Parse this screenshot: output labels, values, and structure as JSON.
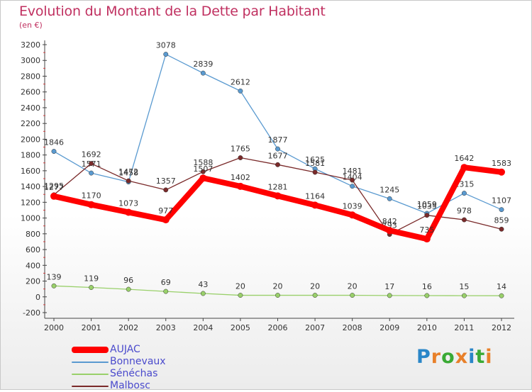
{
  "title": "Evolution du Montant de la Dette par Habitant",
  "subtitle": "(en €)",
  "logo": {
    "text": "Proxiti",
    "colors": [
      "#2a86c8",
      "#e8802a",
      "#3aaa35",
      "#e8802a",
      "#2a86c8",
      "#3aaa35",
      "#e8802a"
    ]
  },
  "chart_data": {
    "type": "line",
    "x": [
      "2000",
      "2001",
      "2002",
      "2003",
      "2004",
      "2005",
      "2006",
      "2007",
      "2008",
      "2009",
      "2010",
      "2011",
      "2012"
    ],
    "ylim": [
      -200,
      3200
    ],
    "yticks": [
      -200,
      0,
      200,
      400,
      600,
      800,
      1000,
      1200,
      1400,
      1600,
      1800,
      2000,
      2200,
      2400,
      2600,
      2800,
      3000,
      3200
    ],
    "grid": false,
    "legend": "bottom-left",
    "series": [
      {
        "name": "Bonnevaux",
        "color": "#5a9ad0",
        "values": [
          1846,
          1571,
          1458,
          3078,
          2839,
          2612,
          1877,
          1625,
          1404,
          1245,
          1059,
          1315,
          1107
        ]
      },
      {
        "name": "Sénéchas",
        "color": "#99d06a",
        "values": [
          139,
          119,
          96,
          69,
          43,
          20,
          20,
          20,
          20,
          17,
          16,
          15,
          14
        ]
      },
      {
        "name": "Malbosc",
        "color": "#7a2a2a",
        "values": [
          1295,
          1692,
          1472,
          1357,
          1588,
          1765,
          1677,
          1581,
          1481,
          793,
          1035,
          978,
          859
        ]
      },
      {
        "name": "AUJAC",
        "color": "#ff0000",
        "values": [
          1277,
          1170,
          1073,
          977,
          1507,
          1402,
          1281,
          1164,
          1039,
          842,
          735,
          1642,
          1583
        ]
      }
    ],
    "legend_order": [
      "AUJAC",
      "Bonnevaux",
      "Sénéchas",
      "Malbosc"
    ]
  }
}
